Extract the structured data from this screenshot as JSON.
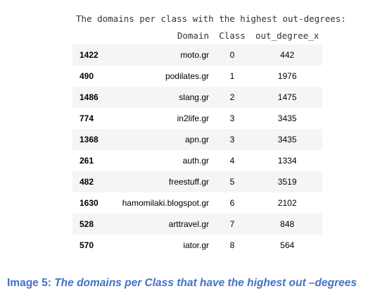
{
  "output": {
    "heading": "The domains per class with the highest out-degrees:",
    "columns": {
      "domain": "Domain",
      "class": "Class",
      "out_degree": "out_degree_x"
    },
    "rows": [
      {
        "index": "1422",
        "domain": "moto.gr",
        "class": "0",
        "out_degree": "442"
      },
      {
        "index": "490",
        "domain": "podilates.gr",
        "class": "1",
        "out_degree": "1976"
      },
      {
        "index": "1486",
        "domain": "slang.gr",
        "class": "2",
        "out_degree": "1475"
      },
      {
        "index": "774",
        "domain": "in2life.gr",
        "class": "3",
        "out_degree": "3435"
      },
      {
        "index": "1368",
        "domain": "apn.gr",
        "class": "3",
        "out_degree": "3435"
      },
      {
        "index": "261",
        "domain": "auth.gr",
        "class": "4",
        "out_degree": "1334"
      },
      {
        "index": "482",
        "domain": "freestuff.gr",
        "class": "5",
        "out_degree": "3519"
      },
      {
        "index": "1630",
        "domain": "hamomilaki.blogspot.gr",
        "class": "6",
        "out_degree": "2102"
      },
      {
        "index": "528",
        "domain": "arttravel.gr",
        "class": "7",
        "out_degree": "848"
      },
      {
        "index": "570",
        "domain": "iator.gr",
        "class": "8",
        "out_degree": "564"
      }
    ]
  },
  "caption": {
    "label": "Image 5:",
    "text": "The domains per Class that have the highest out –degrees"
  }
}
